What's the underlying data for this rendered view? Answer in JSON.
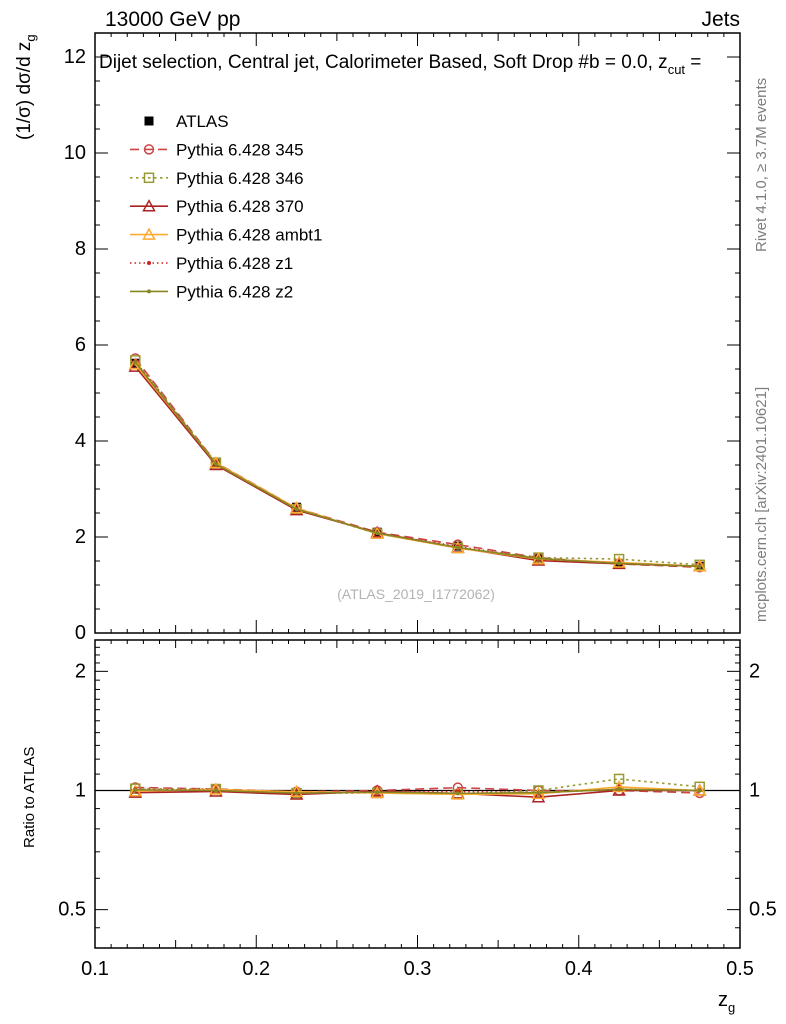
{
  "header": {
    "left": "13000 GeV pp",
    "right": "Jets"
  },
  "plot": {
    "title_main": "Dijet selection, Central jet, Calorimeter Based, Soft Drop #b = 0.0, z",
    "title_sub": "cut",
    "title_tail": " =",
    "ylabel_main": "(1/σ) dσ/d z",
    "ylabel_sub": "g",
    "xlabel_main": "z",
    "xlabel_sub": "g",
    "ratio_ylabel": "Ratio to ATLAS",
    "watermark": "(ATLAS_2019_I1772062)",
    "side_top": "Rivet 4.1.0, ≥ 3.7M events",
    "side_bottom": "mcplots.cern.ch [arXiv:2401.10621]"
  },
  "chart_data": {
    "type": "line",
    "title": "Dijet selection, Central jet, Calorimeter Based, Soft Drop #b = 0.0, z_cut =",
    "xlabel": "z_g",
    "ylabel": "(1/σ) dσ/d z_g",
    "ratio_ylabel": "Ratio to ATLAS",
    "legend_position": "top-left-inside",
    "grid": false,
    "x": [
      0.125,
      0.175,
      0.225,
      0.275,
      0.325,
      0.375,
      0.425,
      0.475
    ],
    "x_range": [
      0.1,
      0.5
    ],
    "x_ticks": [
      0.1,
      0.2,
      0.3,
      0.4,
      0.5
    ],
    "main_y_range": [
      0,
      12.5
    ],
    "main_y_ticks": [
      0,
      2,
      4,
      6,
      8,
      10,
      12
    ],
    "ratio_y_range": [
      0.4,
      2.4
    ],
    "ratio_y_ticks": [
      0.5,
      1,
      2
    ],
    "ratio_scale": "log",
    "series": [
      {
        "name": "ATLAS",
        "color": "#000000",
        "line": "none",
        "marker": "square-filled",
        "values": [
          5.62,
          3.52,
          2.62,
          2.1,
          1.81,
          1.57,
          1.44,
          1.39
        ]
      },
      {
        "name": "Pythia 6.428 345",
        "color": "#cc4444",
        "line": "dashed",
        "marker": "circle-open",
        "values": [
          5.72,
          3.55,
          2.6,
          2.1,
          1.84,
          1.57,
          1.44,
          1.37
        ]
      },
      {
        "name": "Pythia 6.428 346",
        "color": "#999933",
        "line": "dotted",
        "marker": "square-open",
        "values": [
          5.68,
          3.55,
          2.58,
          2.07,
          1.77,
          1.57,
          1.54,
          1.42
        ]
      },
      {
        "name": "Pythia 6.428 370",
        "color": "#aa2222",
        "line": "solid",
        "marker": "triangle-open",
        "values": [
          5.55,
          3.5,
          2.56,
          2.09,
          1.78,
          1.51,
          1.44,
          1.39
        ]
      },
      {
        "name": "Pythia 6.428 ambt1",
        "color": "#ffaa33",
        "line": "solid",
        "marker": "triangle-open",
        "values": [
          5.6,
          3.54,
          2.6,
          2.07,
          1.77,
          1.54,
          1.47,
          1.39
        ]
      },
      {
        "name": "Pythia 6.428 z1",
        "color": "#cc2222",
        "line": "dotted-fine",
        "marker": "dot",
        "values": [
          5.66,
          3.52,
          2.58,
          2.08,
          1.8,
          1.55,
          1.45,
          1.39
        ]
      },
      {
        "name": "Pythia 6.428 z2",
        "color": "#888822",
        "line": "solid",
        "marker": "dot",
        "values": [
          5.64,
          3.52,
          2.58,
          2.08,
          1.78,
          1.55,
          1.45,
          1.39
        ]
      }
    ]
  }
}
